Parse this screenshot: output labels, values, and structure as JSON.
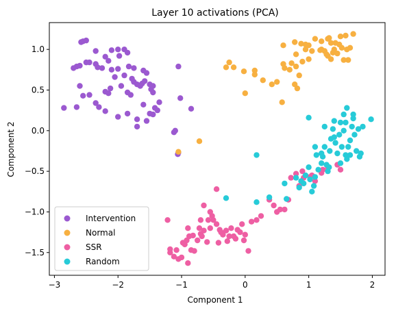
{
  "chart_data": {
    "type": "scatter",
    "title": "Layer 10 activations (PCA)",
    "xlabel": "Component 1",
    "ylabel": "Component 2",
    "xlim": [
      -3.08,
      2.2
    ],
    "ylim": [
      -1.78,
      1.33
    ],
    "xticks": [
      -3,
      -2,
      -1,
      0,
      1,
      2
    ],
    "yticks": [
      -1.5,
      -1.0,
      -0.5,
      0.0,
      0.5,
      1.0
    ],
    "xtick_labels": [
      "−3",
      "−2",
      "−1",
      "0",
      "1",
      "2"
    ],
    "ytick_labels": [
      "−1.5",
      "−1.0",
      "−0.5",
      "0.0",
      "0.5",
      "1.0"
    ],
    "grid": false,
    "legend_position": "lower-left",
    "series": [
      {
        "name": "Intervention",
        "color": "#9b59d0",
        "points": [
          [
            -2.55,
            1.1
          ],
          [
            -2.5,
            1.11
          ],
          [
            -2.58,
            1.09
          ],
          [
            -2.35,
            0.98
          ],
          [
            -2.1,
            0.99
          ],
          [
            -2.0,
            1.0
          ],
          [
            -1.9,
            1.0
          ],
          [
            -1.85,
            0.96
          ],
          [
            -2.2,
            0.91
          ],
          [
            -2.15,
            0.86
          ],
          [
            -1.98,
            0.92
          ],
          [
            -1.83,
            0.79
          ],
          [
            -1.75,
            0.77
          ],
          [
            -1.6,
            0.74
          ],
          [
            -1.55,
            0.71
          ],
          [
            -2.7,
            0.77
          ],
          [
            -2.65,
            0.79
          ],
          [
            -2.6,
            0.8
          ],
          [
            -2.5,
            0.84
          ],
          [
            -2.45,
            0.84
          ],
          [
            -2.35,
            0.82
          ],
          [
            -2.32,
            0.78
          ],
          [
            -2.25,
            0.77
          ],
          [
            -2.1,
            0.75
          ],
          [
            -2.0,
            0.76
          ],
          [
            -1.9,
            0.68
          ],
          [
            -1.78,
            0.64
          ],
          [
            -1.75,
            0.6
          ],
          [
            -1.7,
            0.57
          ],
          [
            -1.62,
            0.58
          ],
          [
            -1.58,
            0.61
          ],
          [
            -1.65,
            0.55
          ],
          [
            -1.5,
            0.57
          ],
          [
            -1.45,
            0.55
          ],
          [
            -1.48,
            0.51
          ],
          [
            -2.05,
            0.66
          ],
          [
            -2.12,
            0.52
          ],
          [
            -2.15,
            0.46
          ],
          [
            -2.2,
            0.48
          ],
          [
            -1.95,
            0.55
          ],
          [
            -1.85,
            0.47
          ],
          [
            -1.8,
            0.44
          ],
          [
            -2.6,
            0.55
          ],
          [
            -2.55,
            0.43
          ],
          [
            -2.45,
            0.44
          ],
          [
            -2.35,
            0.34
          ],
          [
            -2.3,
            0.29
          ],
          [
            -2.85,
            0.28
          ],
          [
            -2.65,
            0.29
          ],
          [
            -2.2,
            0.24
          ],
          [
            -2.0,
            0.17
          ],
          [
            -1.85,
            0.21
          ],
          [
            -1.7,
            0.14
          ],
          [
            -1.55,
            0.12
          ],
          [
            -1.5,
            0.21
          ],
          [
            -1.45,
            0.2
          ],
          [
            -1.42,
            0.28
          ],
          [
            -1.38,
            0.25
          ],
          [
            -1.35,
            0.35
          ],
          [
            -1.6,
            0.32
          ],
          [
            -1.45,
            0.47
          ],
          [
            -1.05,
            0.79
          ],
          [
            -1.02,
            0.4
          ],
          [
            -0.85,
            0.27
          ],
          [
            -1.7,
            0.05
          ],
          [
            -1.1,
            0.0
          ],
          [
            -1.12,
            -0.02
          ],
          [
            -1.05,
            -0.27
          ],
          [
            -1.06,
            -0.29
          ]
        ]
      },
      {
        "name": "Normal",
        "color": "#f7b041",
        "points": [
          [
            -0.3,
            0.78
          ],
          [
            -0.25,
            0.84
          ],
          [
            -0.18,
            0.78
          ],
          [
            -0.02,
            0.73
          ],
          [
            0.15,
            0.74
          ],
          [
            0.15,
            0.69
          ],
          [
            0.28,
            0.62
          ],
          [
            0.42,
            0.57
          ],
          [
            0.5,
            0.6
          ],
          [
            0.0,
            0.46
          ],
          [
            0.58,
            0.35
          ],
          [
            0.6,
            0.82
          ],
          [
            0.62,
            0.77
          ],
          [
            0.73,
            0.83
          ],
          [
            0.8,
            0.79
          ],
          [
            0.78,
            0.57
          ],
          [
            0.7,
            0.75
          ],
          [
            0.82,
            0.52
          ],
          [
            0.8,
            0.94
          ],
          [
            0.6,
            1.05
          ],
          [
            0.78,
            1.09
          ],
          [
            0.88,
            1.07
          ],
          [
            0.95,
            1.06
          ],
          [
            1.0,
            1.05
          ],
          [
            1.1,
            1.13
          ],
          [
            1.2,
            1.1
          ],
          [
            1.3,
            1.13
          ],
          [
            1.32,
            1.14
          ],
          [
            1.35,
            1.08
          ],
          [
            1.42,
            1.08
          ],
          [
            1.48,
            1.06
          ],
          [
            1.5,
            1.16
          ],
          [
            1.58,
            1.17
          ],
          [
            1.6,
            1.0
          ],
          [
            1.65,
            1.02
          ],
          [
            1.52,
            1.02
          ],
          [
            1.45,
            0.95
          ],
          [
            1.38,
            0.96
          ],
          [
            1.3,
            0.92
          ],
          [
            1.25,
            0.98
          ],
          [
            1.18,
            0.99
          ],
          [
            1.05,
            0.98
          ],
          [
            1.0,
            0.88
          ],
          [
            0.95,
            1.0
          ],
          [
            0.9,
            0.85
          ],
          [
            0.85,
            0.68
          ],
          [
            1.2,
            1.0
          ],
          [
            1.28,
            0.94
          ],
          [
            1.35,
            0.88
          ],
          [
            1.55,
            0.87
          ],
          [
            1.62,
            0.87
          ],
          [
            1.7,
            1.19
          ],
          [
            1.4,
            1.0
          ],
          [
            -1.05,
            -0.26
          ],
          [
            -0.72,
            -0.13
          ]
        ]
      },
      {
        "name": "SSR",
        "color": "#ee5fa3",
        "points": [
          [
            -1.22,
            -1.1
          ],
          [
            -1.18,
            -1.46
          ],
          [
            -1.18,
            -1.5
          ],
          [
            -1.12,
            -1.55
          ],
          [
            -1.08,
            -1.47
          ],
          [
            -1.05,
            -1.58
          ],
          [
            -1.0,
            -1.56
          ],
          [
            -0.98,
            -1.38
          ],
          [
            -0.95,
            -1.4
          ],
          [
            -0.92,
            -1.35
          ],
          [
            -0.9,
            -1.63
          ],
          [
            -0.88,
            -1.3
          ],
          [
            -0.85,
            -1.47
          ],
          [
            -0.82,
            -1.29
          ],
          [
            -0.8,
            -1.48
          ],
          [
            -0.75,
            -1.35
          ],
          [
            -0.72,
            -1.2
          ],
          [
            -0.7,
            -1.27
          ],
          [
            -0.68,
            -1.3
          ],
          [
            -0.65,
            -1.23
          ],
          [
            -0.6,
            -1.37
          ],
          [
            -0.58,
            -1.1
          ],
          [
            -0.55,
            -1.2
          ],
          [
            -0.52,
            -1.05
          ],
          [
            -0.5,
            -1.1
          ],
          [
            -0.45,
            -1.15
          ],
          [
            -0.42,
            -1.38
          ],
          [
            -0.4,
            -1.22
          ],
          [
            -0.38,
            -1.25
          ],
          [
            -0.35,
            -1.28
          ],
          [
            -0.3,
            -1.23
          ],
          [
            -0.28,
            -1.36
          ],
          [
            -0.25,
            -1.3
          ],
          [
            -0.22,
            -1.2
          ],
          [
            -0.18,
            -1.3
          ],
          [
            -0.12,
            -1.22
          ],
          [
            -0.08,
            -1.25
          ],
          [
            -0.05,
            -1.15
          ],
          [
            -0.02,
            -1.35
          ],
          [
            0.0,
            -1.28
          ],
          [
            0.05,
            -1.48
          ],
          [
            0.18,
            -1.1
          ],
          [
            0.25,
            -1.05
          ],
          [
            0.45,
            -0.92
          ],
          [
            0.5,
            -1.0
          ],
          [
            0.55,
            -0.97
          ],
          [
            0.62,
            -0.97
          ],
          [
            0.68,
            -0.85
          ],
          [
            0.72,
            -0.58
          ],
          [
            0.8,
            -0.53
          ],
          [
            0.85,
            -0.68
          ],
          [
            0.9,
            -0.5
          ],
          [
            0.92,
            -0.58
          ],
          [
            1.02,
            -0.57
          ],
          [
            1.05,
            -0.55
          ],
          [
            1.1,
            -0.62
          ],
          [
            1.2,
            -0.52
          ],
          [
            1.22,
            -0.48
          ],
          [
            1.3,
            -0.45
          ],
          [
            1.45,
            -0.42
          ],
          [
            1.5,
            -0.48
          ],
          [
            -0.7,
            -1.1
          ],
          [
            -0.55,
            -1.0
          ],
          [
            -0.9,
            -1.2
          ],
          [
            -0.45,
            -0.72
          ],
          [
            -0.15,
            -1.33
          ],
          [
            0.1,
            -1.12
          ],
          [
            0.38,
            -0.85
          ],
          [
            -0.65,
            -0.92
          ]
        ]
      },
      {
        "name": "Random",
        "color": "#27cbd8",
        "points": [
          [
            -0.3,
            -0.83
          ],
          [
            0.18,
            -0.3
          ],
          [
            0.18,
            -0.88
          ],
          [
            0.38,
            -0.82
          ],
          [
            0.62,
            -0.65
          ],
          [
            0.65,
            -0.84
          ],
          [
            0.8,
            -0.58
          ],
          [
            0.85,
            -0.7
          ],
          [
            0.88,
            -0.62
          ],
          [
            0.92,
            -0.65
          ],
          [
            0.95,
            -0.55
          ],
          [
            1.0,
            -0.45
          ],
          [
            1.02,
            -0.6
          ],
          [
            1.05,
            -0.75
          ],
          [
            1.08,
            -0.68
          ],
          [
            1.1,
            -0.57
          ],
          [
            1.15,
            -0.48
          ],
          [
            1.2,
            -0.28
          ],
          [
            1.22,
            -0.32
          ],
          [
            1.25,
            -0.2
          ],
          [
            1.28,
            -0.42
          ],
          [
            1.3,
            -0.5
          ],
          [
            1.32,
            -0.45
          ],
          [
            1.33,
            -0.25
          ],
          [
            1.35,
            -0.1
          ],
          [
            1.38,
            0.02
          ],
          [
            1.4,
            -0.08
          ],
          [
            1.42,
            -0.15
          ],
          [
            1.45,
            -0.28
          ],
          [
            1.48,
            -0.05
          ],
          [
            1.5,
            0.1
          ],
          [
            1.52,
            -0.2
          ],
          [
            1.55,
            0.0
          ],
          [
            1.58,
            -0.3
          ],
          [
            1.6,
            -0.35
          ],
          [
            1.62,
            -0.2
          ],
          [
            1.65,
            -0.12
          ],
          [
            1.68,
            0.05
          ],
          [
            1.7,
            0.2
          ],
          [
            1.72,
            -0.05
          ],
          [
            1.75,
            -0.25
          ],
          [
            1.78,
            0.02
          ],
          [
            1.8,
            -0.32
          ],
          [
            1.82,
            -0.28
          ],
          [
            1.85,
            0.05
          ],
          [
            1.98,
            0.14
          ],
          [
            1.6,
            0.28
          ],
          [
            1.55,
            0.2
          ],
          [
            1.0,
            0.16
          ],
          [
            1.1,
            -0.2
          ],
          [
            1.25,
            0.05
          ],
          [
            1.4,
            0.12
          ],
          [
            1.58,
            0.1
          ],
          [
            1.7,
            0.15
          ],
          [
            1.5,
            -0.4
          ],
          [
            1.2,
            -0.4
          ],
          [
            1.12,
            -0.3
          ],
          [
            1.65,
            -0.3
          ]
        ]
      }
    ]
  }
}
